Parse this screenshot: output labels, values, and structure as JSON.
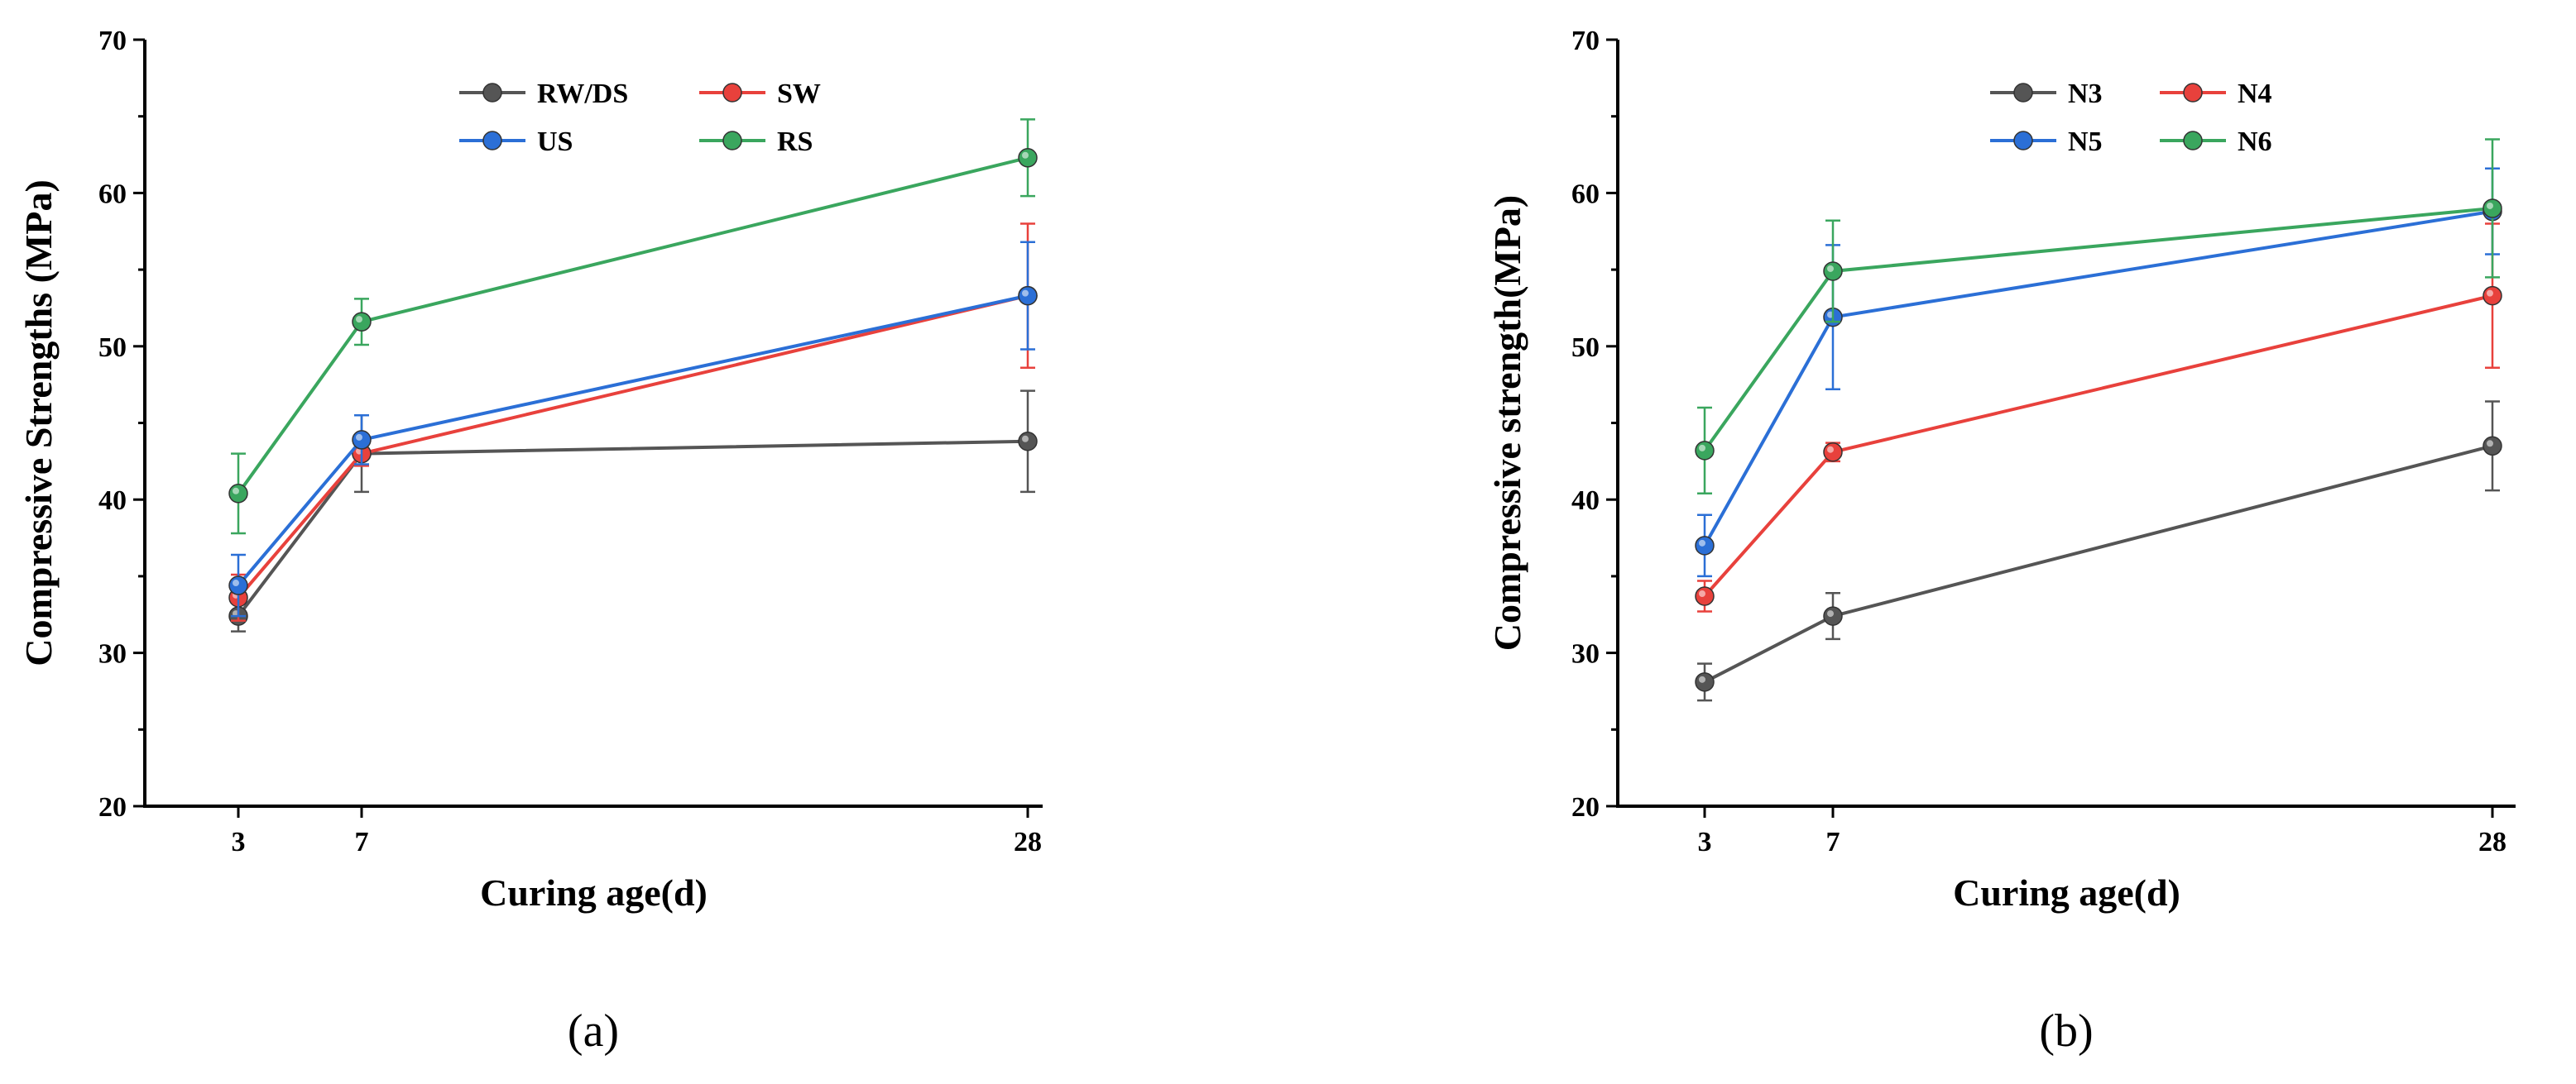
{
  "chart_data": [
    {
      "type": "line",
      "panel_label": "(a)",
      "xlabel": "Curing age(d)",
      "ylabel": "Compressive Strengths (MPa)",
      "x": [
        3,
        7,
        28
      ],
      "xticks": [
        "3",
        "7",
        "28"
      ],
      "xlim": [
        0,
        30
      ],
      "ylim": [
        20,
        70
      ],
      "yticks": [
        "20",
        "30",
        "40",
        "50",
        "60",
        "70"
      ],
      "legend_position": "top-center",
      "legend_columns": 2,
      "series": [
        {
          "name": "RW/DS",
          "color": "#555555",
          "values": [
            32.4,
            43.0,
            43.8
          ],
          "errors": [
            1.0,
            2.5,
            3.3
          ]
        },
        {
          "name": "SW",
          "color": "#e8413c",
          "values": [
            33.6,
            43.0,
            53.3
          ],
          "errors": [
            1.5,
            0.8,
            4.7
          ]
        },
        {
          "name": "US",
          "color": "#2b6fd6",
          "values": [
            34.4,
            43.9,
            53.3
          ],
          "errors": [
            2.0,
            1.6,
            3.5
          ]
        },
        {
          "name": "RS",
          "color": "#3aa65e",
          "values": [
            40.4,
            51.6,
            62.3
          ],
          "errors": [
            2.6,
            1.5,
            2.5
          ]
        }
      ]
    },
    {
      "type": "line",
      "panel_label": "(b)",
      "xlabel": "Curing age(d)",
      "ylabel": "Compressive strength(MPa)",
      "x": [
        3,
        7,
        28
      ],
      "xticks": [
        "3",
        "7",
        "28"
      ],
      "xlim": [
        0,
        30
      ],
      "ylim": [
        20,
        70
      ],
      "yticks": [
        "20",
        "30",
        "40",
        "50",
        "60",
        "70"
      ],
      "legend_position": "top-center",
      "legend_columns": 2,
      "series": [
        {
          "name": "N3",
          "color": "#555555",
          "values": [
            28.1,
            32.4,
            43.5
          ],
          "errors": [
            1.2,
            1.5,
            2.9
          ]
        },
        {
          "name": "N4",
          "color": "#e8413c",
          "values": [
            33.7,
            43.1,
            53.3
          ],
          "errors": [
            1.0,
            0.6,
            4.7
          ]
        },
        {
          "name": "N5",
          "color": "#2b6fd6",
          "values": [
            37.0,
            51.9,
            58.8
          ],
          "errors": [
            2.0,
            4.7,
            2.8
          ]
        },
        {
          "name": "N6",
          "color": "#3aa65e",
          "values": [
            43.2,
            54.9,
            59.0
          ],
          "errors": [
            2.8,
            3.3,
            4.5
          ]
        }
      ]
    }
  ]
}
